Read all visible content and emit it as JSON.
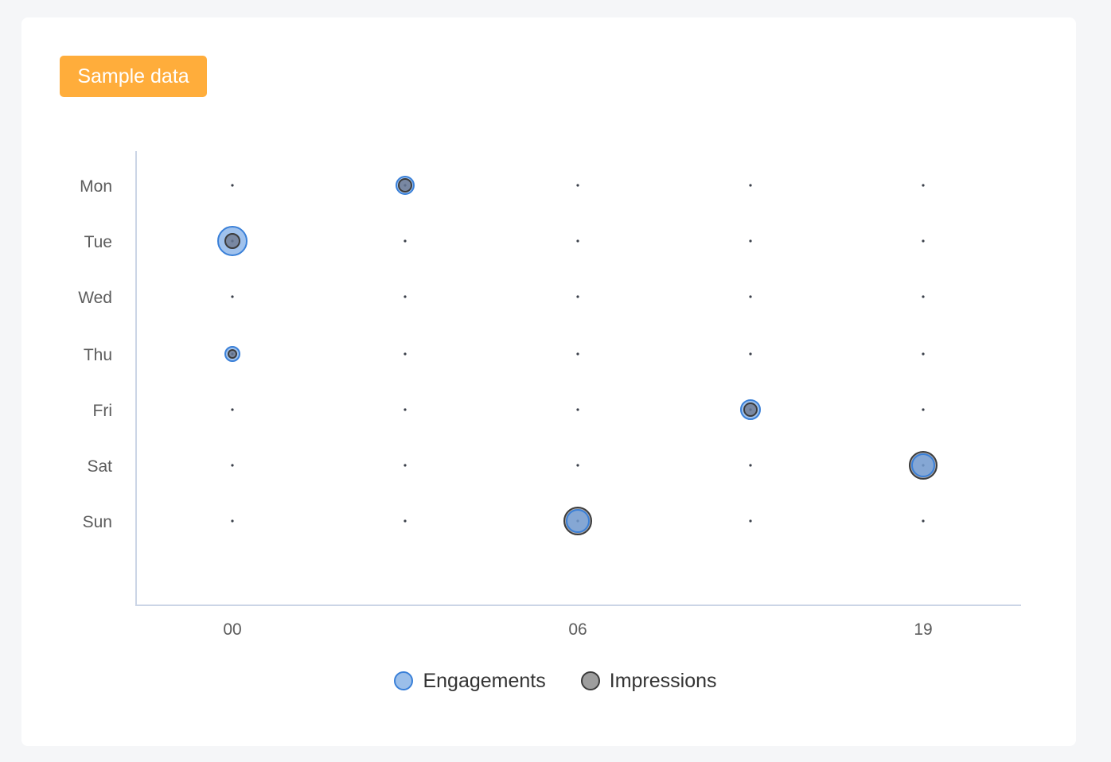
{
  "badge": {
    "label": "Sample data",
    "color": "#ffad3b"
  },
  "legend": {
    "items": [
      {
        "label": "Engagements",
        "fill": "#9bbfea",
        "stroke": "#3a80d8"
      },
      {
        "label": "Impressions",
        "fill": "#9e9e9e",
        "stroke": "#3c3c3c"
      }
    ]
  },
  "chart_data": {
    "type": "scatter",
    "subtype": "bubble-punchcard",
    "title": "",
    "xlabel": "",
    "ylabel": "",
    "y_categories": [
      "Mon",
      "Tue",
      "Wed",
      "Thu",
      "Fri",
      "Sat",
      "Sun"
    ],
    "x_tick_labels": [
      "00",
      "",
      "06",
      "",
      "19"
    ],
    "x_column_count": 5,
    "grid": false,
    "legend_position": "bottom",
    "series": [
      {
        "name": "Engagements",
        "color": "#3a80d8",
        "points": [
          {
            "y": "Mon",
            "col": 1,
            "radius": 11
          },
          {
            "y": "Tue",
            "col": 0,
            "radius": 18
          },
          {
            "y": "Thu",
            "col": 0,
            "radius": 9
          },
          {
            "y": "Fri",
            "col": 3,
            "radius": 12
          },
          {
            "y": "Sat",
            "col": 4,
            "radius": 14
          },
          {
            "y": "Sun",
            "col": 2,
            "radius": 14
          }
        ]
      },
      {
        "name": "Impressions",
        "color": "#3c3c3c",
        "points": [
          {
            "y": "Mon",
            "col": 1,
            "radius": 8
          },
          {
            "y": "Tue",
            "col": 0,
            "radius": 9
          },
          {
            "y": "Thu",
            "col": 0,
            "radius": 5
          },
          {
            "y": "Fri",
            "col": 3,
            "radius": 8
          },
          {
            "y": "Sat",
            "col": 4,
            "radius": 17
          },
          {
            "y": "Sun",
            "col": 2,
            "radius": 17
          }
        ]
      }
    ]
  }
}
